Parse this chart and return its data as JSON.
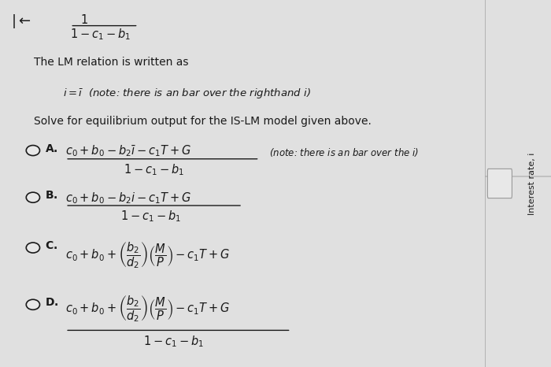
{
  "bg_color": "#e0e0e0",
  "main_bg": "#e8e8e8",
  "text_color": "#1a1a1a",
  "sidebar_bg": "#e0e0e0",
  "divider_color": "#bbbbbb",
  "fig_width": 7.0,
  "fig_height": 4.66,
  "dpi": 100,
  "sidebar_text": "Interest rate, i",
  "lm_intro": "The LM relation is written as",
  "solve_text": "Solve for equilibrium output for the IS-LM model given above."
}
